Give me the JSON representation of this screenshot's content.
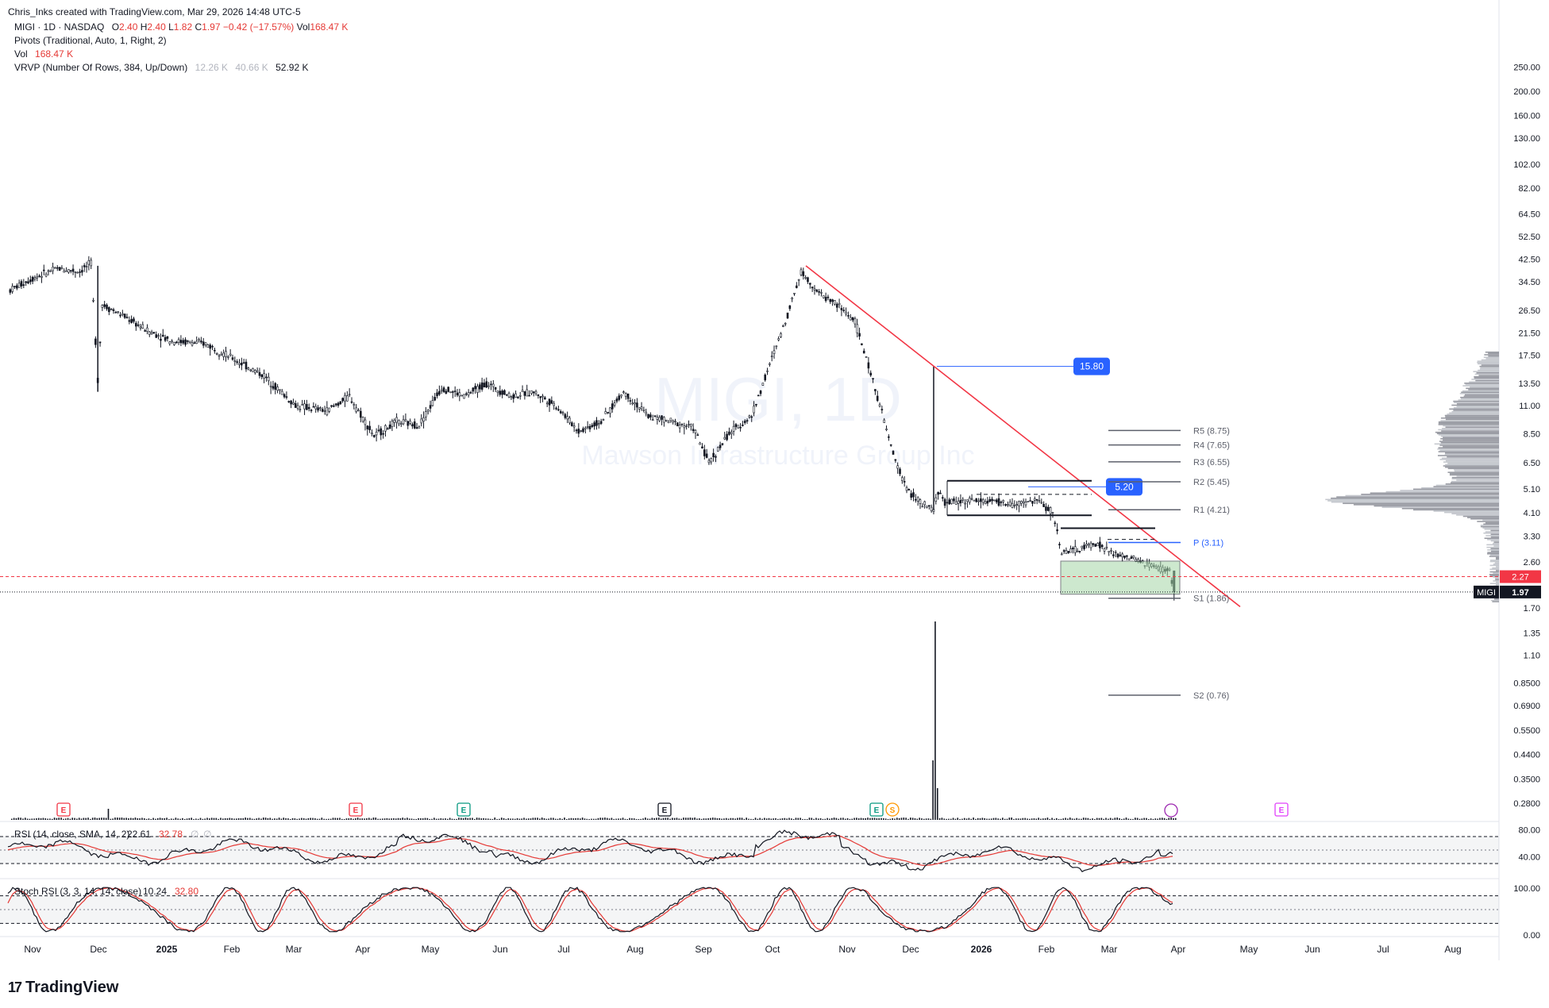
{
  "header": {
    "credit": "Chris_Inks created with TradingView.com, Mar 29, 2026 14:48 UTC-5"
  },
  "legend": {
    "symbol_line": "MIGI · 1D · NASDAQ",
    "ohlc": {
      "o_label": "O",
      "o": "2.40",
      "h_label": "H",
      "h": "2.40",
      "l_label": "L",
      "l": "1.82",
      "c_label": "C",
      "c": "1.97",
      "chg": "−0.42 (−17.57%)",
      "vol_label": "Vol",
      "vol": "168.47 K"
    },
    "pivots": "Pivots (Traditional, Auto, 1, Right, 2)",
    "vol_line": {
      "label": "Vol",
      "value": "168.47 K"
    },
    "vrvp": {
      "label": "VRVP (Number Of Rows, 384, Up/Down)",
      "v1": "12.26 K",
      "v2": "40.66 K",
      "v3": "52.92 K"
    },
    "rsi": {
      "label": "RSI (14, close, SMA, 14, 2)",
      "v1": "22.61",
      "v2": "32.78",
      "v3": "∅",
      "v4": "∅"
    },
    "stoch": {
      "label": "Stoch RSI (3, 3, 14, 14, close)",
      "v1": "10.24",
      "v2": "32.80"
    }
  },
  "watermark": {
    "symbol": "MIGI, 1D",
    "name": "Mawson Infrastructure Group Inc"
  },
  "chart_data": {
    "type": "candlestick",
    "symbol": "MIGI",
    "scale": "log",
    "price_axis_ticks": [
      250.0,
      200.0,
      160.0,
      130.0,
      102.0,
      82.0,
      64.5,
      52.5,
      42.5,
      34.5,
      26.5,
      21.5,
      17.5,
      13.5,
      11.0,
      8.5,
      6.5,
      5.1,
      4.1,
      3.3,
      2.6,
      1.7,
      1.35,
      1.1,
      0.85,
      0.69,
      0.55,
      0.44,
      0.35,
      0.28
    ],
    "price_axis_labels": [
      "250.00",
      "200.00",
      "160.00",
      "130.00",
      "102.00",
      "82.00",
      "64.50",
      "52.50",
      "42.50",
      "34.50",
      "26.50",
      "21.50",
      "17.50",
      "13.50",
      "11.00",
      "8.50",
      "6.50",
      "5.10",
      "4.10",
      "3.30",
      "2.60",
      "1.70",
      "1.35",
      "1.10",
      "0.8500",
      "0.6900",
      "0.5500",
      "0.4400",
      "0.3500",
      "0.2800"
    ],
    "x_ticks": [
      "Nov",
      "Dec",
      "2025",
      "Feb",
      "Mar",
      "Apr",
      "May",
      "Jun",
      "Jul",
      "Aug",
      "Sep",
      "Oct",
      "Nov",
      "Dec",
      "2026",
      "Feb",
      "Mar",
      "Apr",
      "May",
      "Jun",
      "Jul",
      "Aug"
    ],
    "price_path": [
      [
        "2024-10-25",
        32
      ],
      [
        "2024-11-05",
        36
      ],
      [
        "2024-11-15",
        39
      ],
      [
        "2024-11-25",
        38
      ],
      [
        "2024-11-30",
        41
      ],
      [
        "2024-12-03",
        14
      ],
      [
        "2024-12-05",
        28
      ],
      [
        "2024-12-15",
        25
      ],
      [
        "2024-12-25",
        22
      ],
      [
        "2025-01-05",
        20
      ],
      [
        "2025-01-20",
        19.5
      ],
      [
        "2025-02-01",
        17
      ],
      [
        "2025-02-15",
        14.5
      ],
      [
        "2025-03-01",
        11
      ],
      [
        "2025-03-15",
        10.5
      ],
      [
        "2025-03-25",
        12
      ],
      [
        "2025-04-05",
        8.3
      ],
      [
        "2025-04-15",
        9.5
      ],
      [
        "2025-04-25",
        9.2
      ],
      [
        "2025-05-05",
        13
      ],
      [
        "2025-05-15",
        12
      ],
      [
        "2025-05-25",
        13.5
      ],
      [
        "2025-06-05",
        12
      ],
      [
        "2025-06-15",
        12.5
      ],
      [
        "2025-06-25",
        11
      ],
      [
        "2025-07-05",
        8.7
      ],
      [
        "2025-07-15",
        9.5
      ],
      [
        "2025-07-25",
        12.5
      ],
      [
        "2025-08-05",
        10
      ],
      [
        "2025-08-15",
        9.5
      ],
      [
        "2025-08-25",
        9
      ],
      [
        "2025-09-01",
        6.5
      ],
      [
        "2025-09-10",
        8.5
      ],
      [
        "2025-09-20",
        10
      ],
      [
        "2025-09-30",
        18
      ],
      [
        "2025-10-05",
        24
      ],
      [
        "2025-10-12",
        38
      ],
      [
        "2025-10-20",
        31
      ],
      [
        "2025-10-28",
        28
      ],
      [
        "2025-11-05",
        24
      ],
      [
        "2025-11-15",
        12
      ],
      [
        "2025-11-22",
        7
      ],
      [
        "2025-11-28",
        5.1
      ],
      [
        "2025-12-05",
        4.4
      ],
      [
        "2025-12-10",
        4.2
      ],
      [
        "2025-12-12",
        5
      ],
      [
        "2025-12-15",
        4.5
      ],
      [
        "2025-12-25",
        4.6
      ],
      [
        "2026-01-05",
        4.55
      ],
      [
        "2026-01-15",
        4.4
      ],
      [
        "2026-01-25",
        4.6
      ],
      [
        "2026-02-01",
        4.1
      ],
      [
        "2026-02-05",
        2.85
      ],
      [
        "2026-02-12",
        2.9
      ],
      [
        "2026-02-20",
        3.1
      ],
      [
        "2026-02-28",
        2.8
      ],
      [
        "2026-03-10",
        2.65
      ],
      [
        "2026-03-20",
        2.45
      ],
      [
        "2026-03-25",
        2.4
      ],
      [
        "2026-03-27",
        1.97
      ]
    ],
    "last_price": {
      "value": 1.97,
      "label": "1.97",
      "tag": "MIGI"
    },
    "red_dashed_level": {
      "value": 2.27,
      "label": "2.27"
    },
    "pivot_levels": [
      {
        "name": "R5",
        "value": 8.75,
        "label": "R5 (8.75)"
      },
      {
        "name": "R4",
        "value": 7.65,
        "label": "R4 (7.65)"
      },
      {
        "name": "R3",
        "value": 6.55,
        "label": "R3 (6.55)"
      },
      {
        "name": "R2",
        "value": 5.45,
        "label": "R2 (5.45)"
      },
      {
        "name": "R1",
        "value": 4.21,
        "label": "R1 (4.21)"
      },
      {
        "name": "P",
        "value": 3.11,
        "label": "P (3.11)"
      },
      {
        "name": "S1",
        "value": 1.86,
        "label": "S1 (1.86)"
      },
      {
        "name": "S2",
        "value": 0.76,
        "label": "S2 (0.76)"
      }
    ],
    "price_callouts": [
      {
        "value": 15.8,
        "label": "15.80"
      },
      {
        "value": 5.2,
        "label": "5.20"
      }
    ],
    "events": [
      "E",
      "E",
      "E",
      "E",
      "E",
      "S",
      "E"
    ],
    "rsi_axis_labels": [
      "80.00",
      "40.00"
    ],
    "stoch_axis_labels": [
      "100.00",
      "0.00"
    ],
    "colors": {
      "up": "#131722",
      "trendline": "#f23645",
      "pivot": "#5d606b",
      "pivot_p": "#2962ff",
      "callout": "#2962ff",
      "zone": "#a5d6a7",
      "rsi": "#131722",
      "rsi_sma": "#e53935"
    }
  },
  "branding": {
    "logo_text": "TradingView"
  }
}
